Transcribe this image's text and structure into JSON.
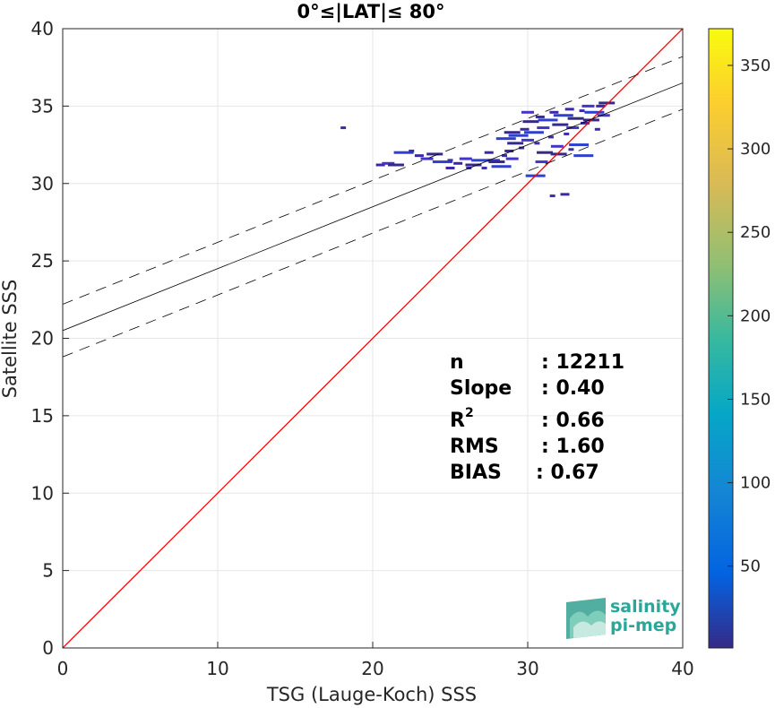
{
  "chart_data": {
    "type": "scatter",
    "title": "0°≤|LAT|≤ 80°",
    "xlabel": "TSG (Lauge-Koch) SSS",
    "ylabel": "Satellite SSS",
    "xlim": [
      0,
      40
    ],
    "ylim": [
      0,
      40
    ],
    "xticks": [
      "0",
      "10",
      "20",
      "30",
      "40"
    ],
    "yticks": [
      "0",
      "5",
      "10",
      "15",
      "20",
      "25",
      "30",
      "35",
      "40"
    ],
    "grid": true,
    "colorbar": {
      "range": [
        1,
        372
      ],
      "ticks": [
        "50",
        "100",
        "150",
        "200",
        "250",
        "300",
        "350"
      ],
      "colormap": "parula"
    },
    "identity_line": {
      "color": "#ff0000",
      "from": [
        0,
        0
      ],
      "to": [
        40,
        40
      ]
    },
    "regression_line": {
      "intercept": 20.5,
      "slope": 0.4,
      "color": "#000000"
    },
    "confidence_band": {
      "offset": 1.7,
      "style": "dashed",
      "color": "#000000"
    },
    "density_points": [
      {
        "x": 18.1,
        "y": 33.6
      },
      {
        "x": 20.5,
        "y": 31.2
      },
      {
        "x": 21.0,
        "y": 31.3
      },
      {
        "x": 21.5,
        "y": 31.2
      },
      {
        "x": 22.0,
        "y": 32.0
      },
      {
        "x": 22.5,
        "y": 32.1
      },
      {
        "x": 23.0,
        "y": 31.8
      },
      {
        "x": 23.5,
        "y": 31.6
      },
      {
        "x": 24.0,
        "y": 31.9
      },
      {
        "x": 24.5,
        "y": 31.4
      },
      {
        "x": 25.0,
        "y": 31.5
      },
      {
        "x": 25.5,
        "y": 31.3
      },
      {
        "x": 26.0,
        "y": 31.6
      },
      {
        "x": 26.5,
        "y": 31.2
      },
      {
        "x": 27.0,
        "y": 31.5
      },
      {
        "x": 27.2,
        "y": 31.0
      },
      {
        "x": 27.5,
        "y": 32.0
      },
      {
        "x": 27.8,
        "y": 31.5
      },
      {
        "x": 28.0,
        "y": 31.4
      },
      {
        "x": 28.3,
        "y": 31.1
      },
      {
        "x": 28.5,
        "y": 31.8
      },
      {
        "x": 28.8,
        "y": 32.1
      },
      {
        "x": 29.0,
        "y": 31.6
      },
      {
        "x": 29.2,
        "y": 32.6
      },
      {
        "x": 29.4,
        "y": 33.1
      },
      {
        "x": 29.6,
        "y": 32.3
      },
      {
        "x": 29.8,
        "y": 33.5
      },
      {
        "x": 30.0,
        "y": 32.8
      },
      {
        "x": 30.2,
        "y": 34.0
      },
      {
        "x": 30.4,
        "y": 33.3
      },
      {
        "x": 30.6,
        "y": 32.6
      },
      {
        "x": 30.8,
        "y": 34.3
      },
      {
        "x": 31.0,
        "y": 33.6
      },
      {
        "x": 31.1,
        "y": 32.0
      },
      {
        "x": 31.3,
        "y": 34.1
      },
      {
        "x": 31.5,
        "y": 33.0
      },
      {
        "x": 31.7,
        "y": 34.6
      },
      {
        "x": 31.9,
        "y": 32.4
      },
      {
        "x": 32.1,
        "y": 33.8
      },
      {
        "x": 32.3,
        "y": 34.4
      },
      {
        "x": 32.5,
        "y": 33.2
      },
      {
        "x": 32.7,
        "y": 34.8
      },
      {
        "x": 32.9,
        "y": 33.6
      },
      {
        "x": 33.1,
        "y": 34.2
      },
      {
        "x": 33.3,
        "y": 32.5
      },
      {
        "x": 33.5,
        "y": 34.7
      },
      {
        "x": 33.7,
        "y": 33.9
      },
      {
        "x": 33.9,
        "y": 35.0
      },
      {
        "x": 34.1,
        "y": 34.1
      },
      {
        "x": 34.3,
        "y": 34.6
      },
      {
        "x": 34.5,
        "y": 33.5
      },
      {
        "x": 34.7,
        "y": 35.0
      },
      {
        "x": 34.9,
        "y": 34.4
      },
      {
        "x": 35.1,
        "y": 35.2
      },
      {
        "x": 30.5,
        "y": 30.5
      },
      {
        "x": 31.6,
        "y": 29.2
      },
      {
        "x": 32.4,
        "y": 29.3
      },
      {
        "x": 30.0,
        "y": 34.6
      },
      {
        "x": 29.0,
        "y": 33.3
      },
      {
        "x": 28.6,
        "y": 32.9
      },
      {
        "x": 26.2,
        "y": 31.0
      },
      {
        "x": 25.0,
        "y": 31.0
      },
      {
        "x": 30.9,
        "y": 31.4
      },
      {
        "x": 32.0,
        "y": 31.9
      },
      {
        "x": 33.6,
        "y": 31.8
      },
      {
        "x": 32.8,
        "y": 32.2
      }
    ]
  },
  "stats": {
    "n_label": "n",
    "n_value": ": 12211",
    "slope_label": "Slope",
    "slope_value": ": 0.40",
    "r2_label": "R",
    "r2_sup": "2",
    "r2_value": ": 0.66",
    "rms_label": "RMS",
    "rms_value": ": 1.60",
    "bias_label": "BIAS",
    "bias_value": ": 0.67"
  },
  "logo": {
    "line1": "salinity",
    "line2": "pi-mep"
  }
}
